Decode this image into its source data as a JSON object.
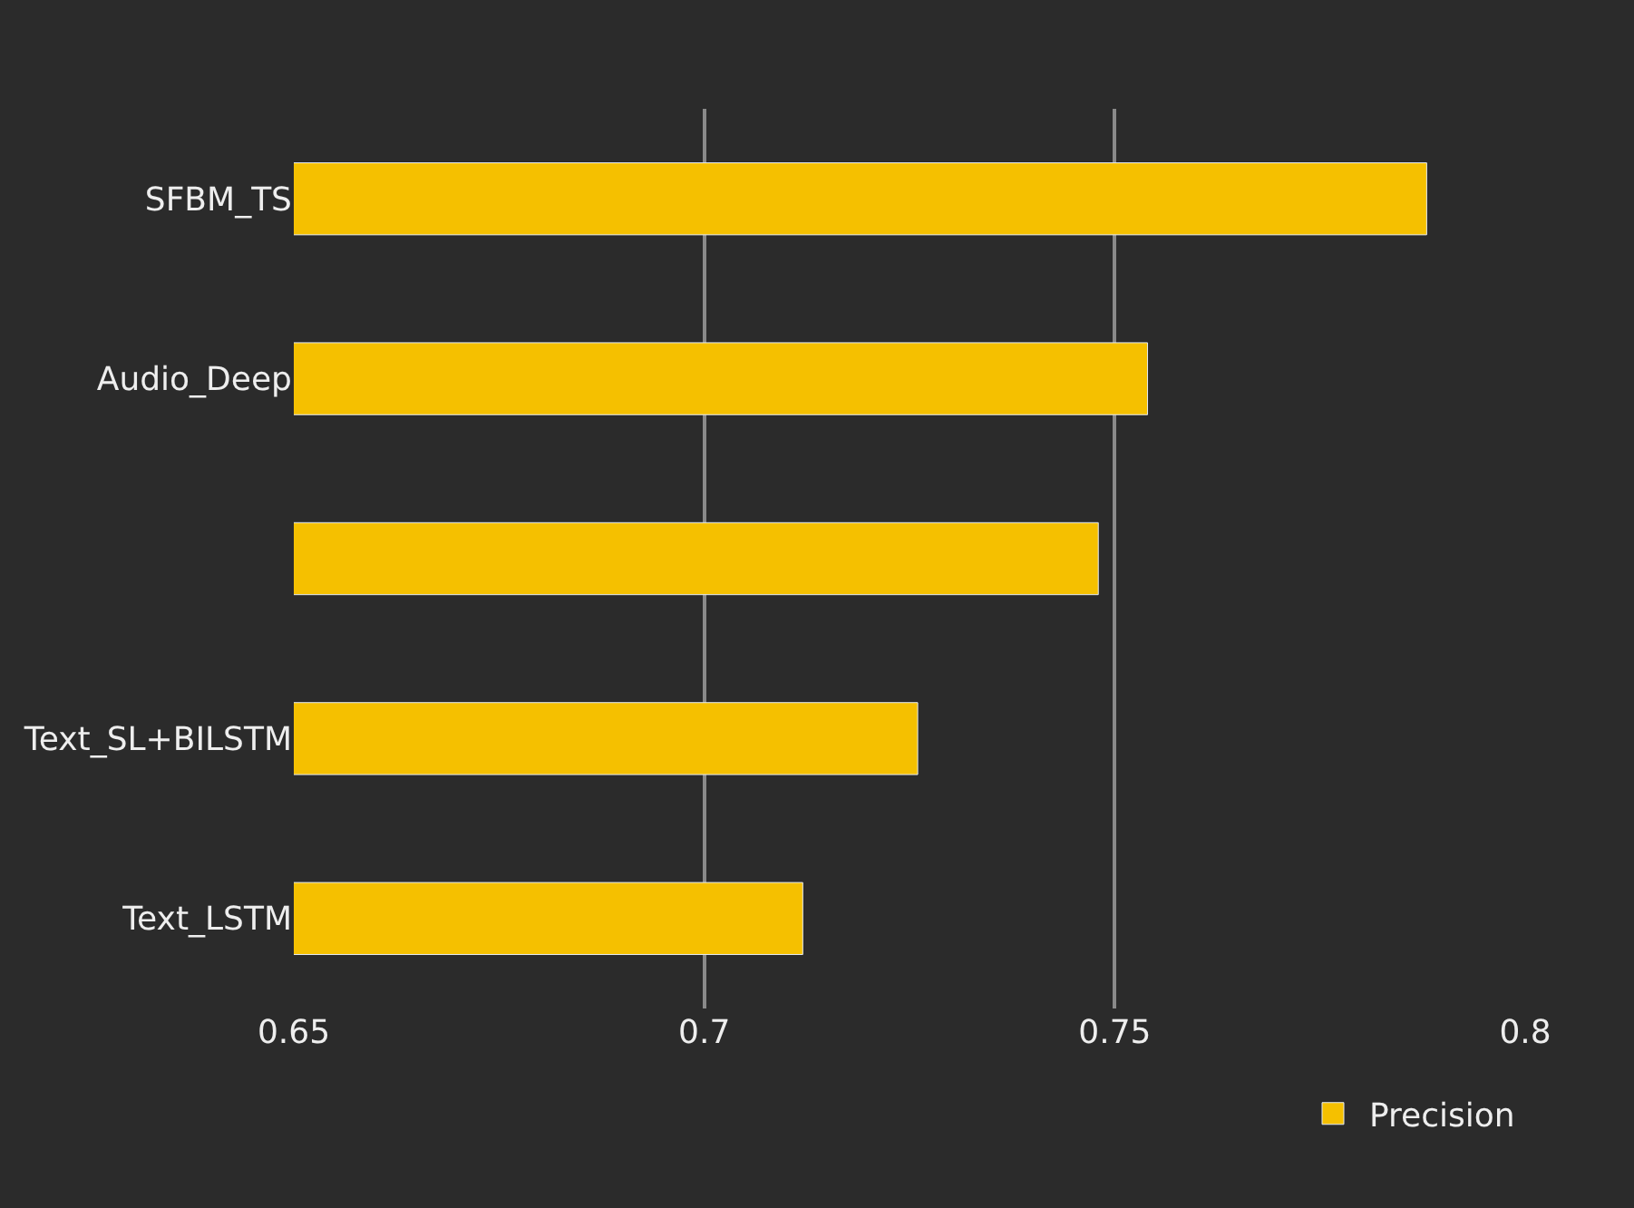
{
  "chart_data": {
    "type": "bar",
    "orientation": "horizontal",
    "categories": [
      "SFBM_TS",
      "Audio_Deep",
      null,
      "Text_SL+BILSTM",
      "Text_LSTM"
    ],
    "series": [
      {
        "name": "Precision",
        "color": "#f5c000",
        "values": [
          0.788,
          0.754,
          0.748,
          0.726,
          0.712
        ]
      }
    ],
    "xlim": [
      0.65,
      0.8
    ],
    "xticks": [
      0.65,
      0.7,
      0.75,
      0.8
    ],
    "grid": "x",
    "legend": "bottom right"
  }
}
